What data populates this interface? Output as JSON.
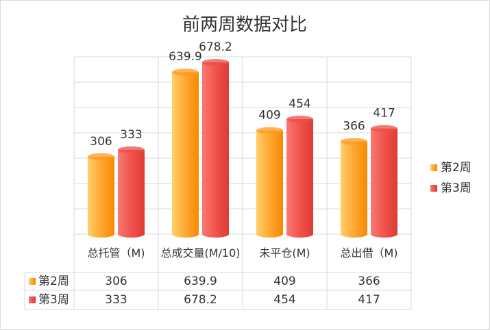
{
  "chart_data": {
    "type": "bar",
    "title": "前两周数据对比",
    "categories": [
      "总托管（M)",
      "总成交量(M/10)",
      "未平仓(M)",
      "总出借（M)"
    ],
    "series": [
      {
        "name": "第2周",
        "color": "#ff9a1f",
        "values": [
          306,
          639.9,
          409,
          366
        ]
      },
      {
        "name": "第3周",
        "color": "#ee4d47",
        "values": [
          333,
          678.2,
          454,
          417
        ]
      }
    ],
    "ylim": [
      0,
      700
    ],
    "yticks": [
      0,
      100,
      200,
      300,
      400,
      500,
      600,
      700
    ],
    "grid": true,
    "legend": "right",
    "data_table": true
  }
}
